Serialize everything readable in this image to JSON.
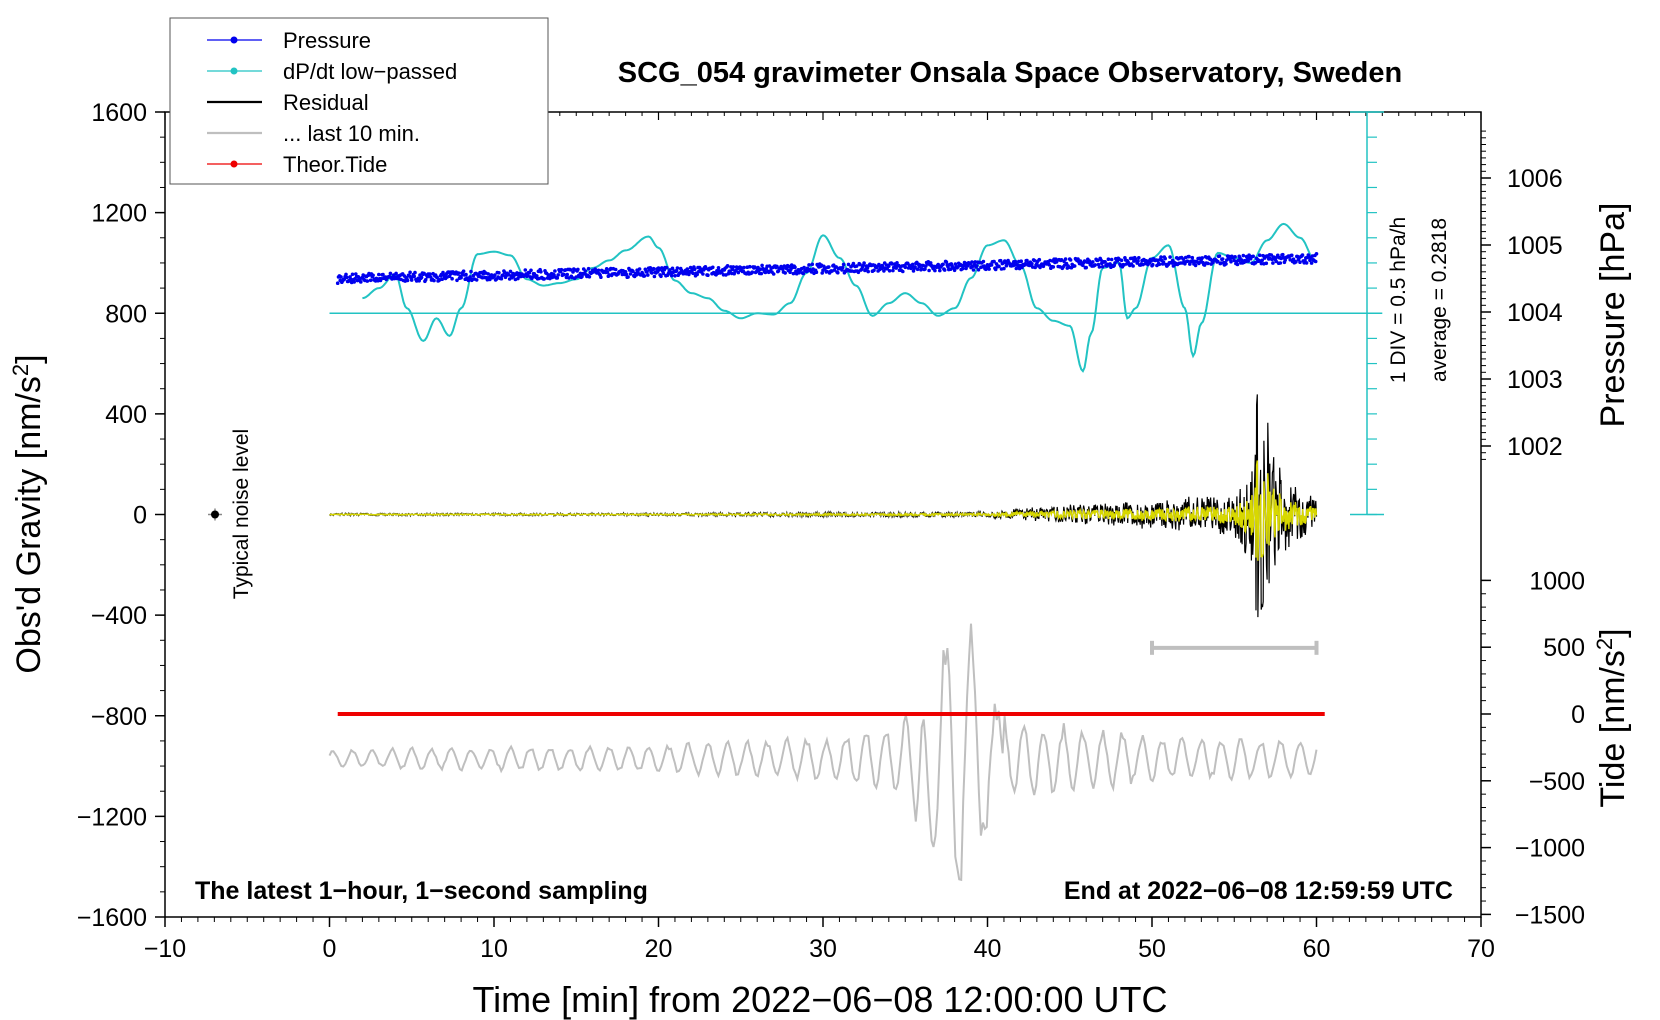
{
  "chart_data": {
    "type": "line",
    "title": "SCG_054 gravimeter Onsala Space Observatory, Sweden",
    "xlabel": "Time [min] from 2022−06−08 12:00:00 UTC",
    "ylabel_left": "Obs'd Gravity [nm/s",
    "ylabel_pressure": "Pressure [hPa]",
    "ylabel_tide": "Tide [nm/s",
    "unit_sup": "2",
    "unit_close": "]",
    "xlim": [
      -10,
      70
    ],
    "ylim_left": [
      -1600,
      1600
    ],
    "x_ticks": [
      "−10",
      "0",
      "10",
      "20",
      "30",
      "40",
      "50",
      "60",
      "70"
    ],
    "x_tick_values": [
      -10,
      0,
      10,
      20,
      30,
      40,
      50,
      60,
      70
    ],
    "y_ticks_left": [
      "1600",
      "1200",
      "800",
      "400",
      "0",
      "−400",
      "−800",
      "−1200",
      "−1600"
    ],
    "y_tick_values_left": [
      1600,
      1200,
      800,
      400,
      0,
      -400,
      -800,
      -1200,
      -1600
    ],
    "pressure_axis": {
      "ticks": [
        "1006",
        "1005",
        "1004",
        "1003",
        "1002"
      ],
      "tick_values": [
        1006,
        1005,
        1004,
        1003,
        1002
      ],
      "range": [
        1001.7,
        1006.9
      ]
    },
    "tide_axis": {
      "ticks": [
        "1000",
        "500",
        "0",
        "−500",
        "−1000",
        "−1500"
      ],
      "tick_values": [
        1000,
        500,
        0,
        -500,
        -1000,
        -1500
      ],
      "range": [
        -1500,
        1000
      ]
    },
    "legend": {
      "position": "top-left",
      "entries": [
        {
          "label": "Pressure",
          "color": "#0000ee",
          "marker": true
        },
        {
          "label": "dP/dt low−passed",
          "color": "#22c3c3",
          "marker": true
        },
        {
          "label": "Residual",
          "color": "#000000",
          "marker": false
        },
        {
          "label": "... last 10 min.",
          "color": "#bfbfbf",
          "marker": false
        },
        {
          "label": "Theor.Tide",
          "color": "#ee0000",
          "marker": true
        }
      ]
    },
    "annotations": {
      "noise": "Typical noise level",
      "scale_div": "1 DIV = 0.5 hPa/h",
      "scale_avg": "average = 0.2818",
      "bottom_left": "The latest 1−hour, 1−second sampling",
      "bottom_right": "End at 2022−06−08 12:59:59 UTC"
    },
    "series": [
      {
        "name": "Pressure",
        "color": "#0000ee",
        "axis": "pressure",
        "x": [
          0.5,
          60
        ],
        "y": [
          1004.5,
          1004.8
        ]
      },
      {
        "name": "dP/dt low−passed",
        "color": "#22c3c3",
        "axis": "left",
        "baseline": 800,
        "x": [
          2,
          3,
          4,
          4.7,
          5.7,
          6.5,
          7.3,
          8,
          9,
          10,
          11,
          12,
          13,
          14,
          15,
          16,
          17,
          18,
          19.4,
          20,
          21,
          22,
          23,
          24,
          25,
          26,
          27,
          28,
          29,
          30,
          31,
          32,
          33,
          34,
          35,
          36,
          37,
          38,
          39,
          40,
          41,
          42,
          43,
          44,
          45,
          45.8,
          46.3,
          47,
          48,
          48.5,
          49,
          50,
          51,
          52,
          52.5,
          53,
          54,
          55,
          56,
          57,
          58,
          59,
          60
        ],
        "y": [
          860,
          900,
          955,
          820,
          690,
          780,
          710,
          820,
          1035,
          1045,
          1030,
          935,
          910,
          920,
          935,
          980,
          1010,
          1050,
          1105,
          1060,
          930,
          880,
          860,
          810,
          780,
          800,
          795,
          840,
          960,
          1110,
          1020,
          910,
          790,
          840,
          880,
          840,
          790,
          820,
          940,
          1070,
          1090,
          990,
          820,
          770,
          750,
          570,
          720,
          980,
          1000,
          780,
          820,
          1020,
          1070,
          820,
          630,
          760,
          1040,
          1020,
          1000,
          1090,
          1155,
          1100,
          1000
        ]
      },
      {
        "name": "Residual",
        "color": "#000000",
        "axis": "left",
        "x": [
          0,
          20,
          40,
          42,
          44,
          46,
          48,
          50,
          52,
          54,
          55,
          56,
          56.5,
          57,
          58,
          59,
          60
        ],
        "envelope": [
          5,
          6,
          12,
          25,
          35,
          45,
          50,
          60,
          70,
          80,
          100,
          200,
          600,
          400,
          150,
          100,
          80
        ]
      },
      {
        "name": "... last 10 min.",
        "color": "#bfbfbf",
        "axis": "left",
        "baseline": -1000,
        "x": [
          0,
          10,
          20,
          30,
          32,
          34,
          35,
          36,
          37,
          37.5,
          38,
          38.6,
          39.2,
          39.8,
          40.5,
          41,
          42,
          44,
          46,
          48,
          50,
          55,
          60
        ],
        "envelope": [
          40,
          50,
          60,
          90,
          120,
          150,
          180,
          300,
          500,
          600,
          620,
          620,
          560,
          400,
          250,
          200,
          170,
          150,
          130,
          120,
          100,
          90,
          80
        ]
      },
      {
        "name": "Theor.Tide",
        "color": "#ee0000",
        "axis": "tide",
        "x": [
          0.5,
          60.5
        ],
        "y": [
          0,
          0
        ]
      }
    ],
    "range_bar": {
      "color": "#bfbfbf",
      "x": [
        50,
        60
      ],
      "y": -530
    }
  }
}
